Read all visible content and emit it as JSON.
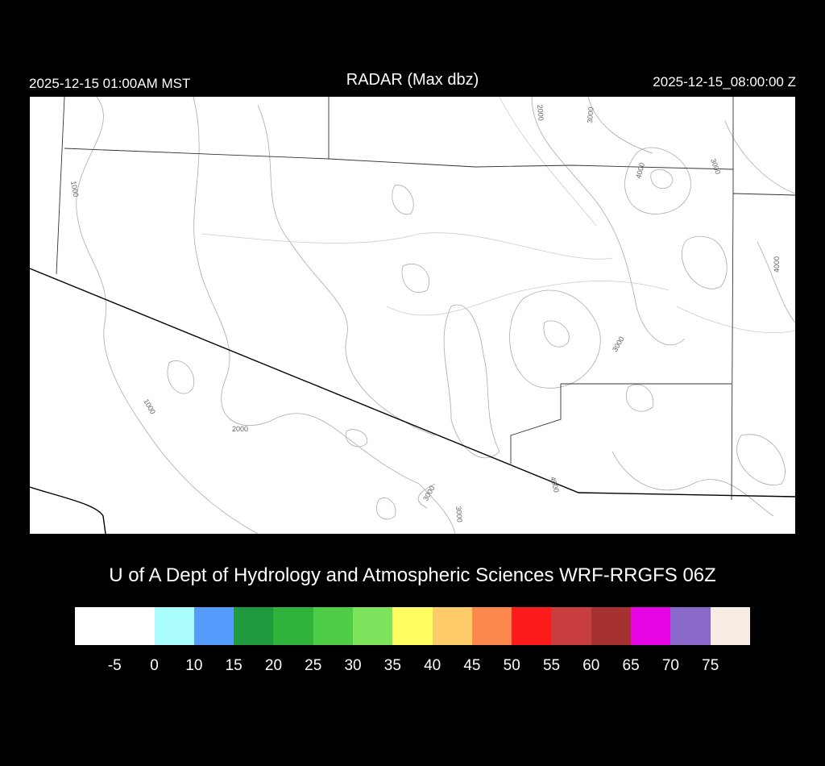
{
  "header": {
    "local_time": "2025-12-15 01:00AM MST",
    "title": "RADAR (Max dbz)",
    "utc_time": "2025-12-15_08:00:00 Z"
  },
  "map": {
    "contour_labels": [
      "1000",
      "1000",
      "2000",
      "2000",
      "3000",
      "3000",
      "3000",
      "3000",
      "3000",
      "4000",
      "4000",
      "4000"
    ],
    "radar_echoes": "none"
  },
  "credit": "U of A Dept of Hydrology and Atmospheric Sciences WRF-RRGFS 06Z",
  "colorbar": {
    "colors": [
      "#ffffff",
      "#aafcfc",
      "#559cfc",
      "#209a3e",
      "#2fb33a",
      "#4fcd47",
      "#7ee45e",
      "#fefe61",
      "#fdcb68",
      "#fd884e",
      "#fd1b1b",
      "#c83e3e",
      "#a53131",
      "#e505e5",
      "#8a68ca",
      "#f6ece4"
    ],
    "tick_labels": [
      "-5",
      "0",
      "10",
      "15",
      "20",
      "25",
      "30",
      "35",
      "40",
      "45",
      "50",
      "55",
      "60",
      "65",
      "70",
      "75"
    ]
  }
}
